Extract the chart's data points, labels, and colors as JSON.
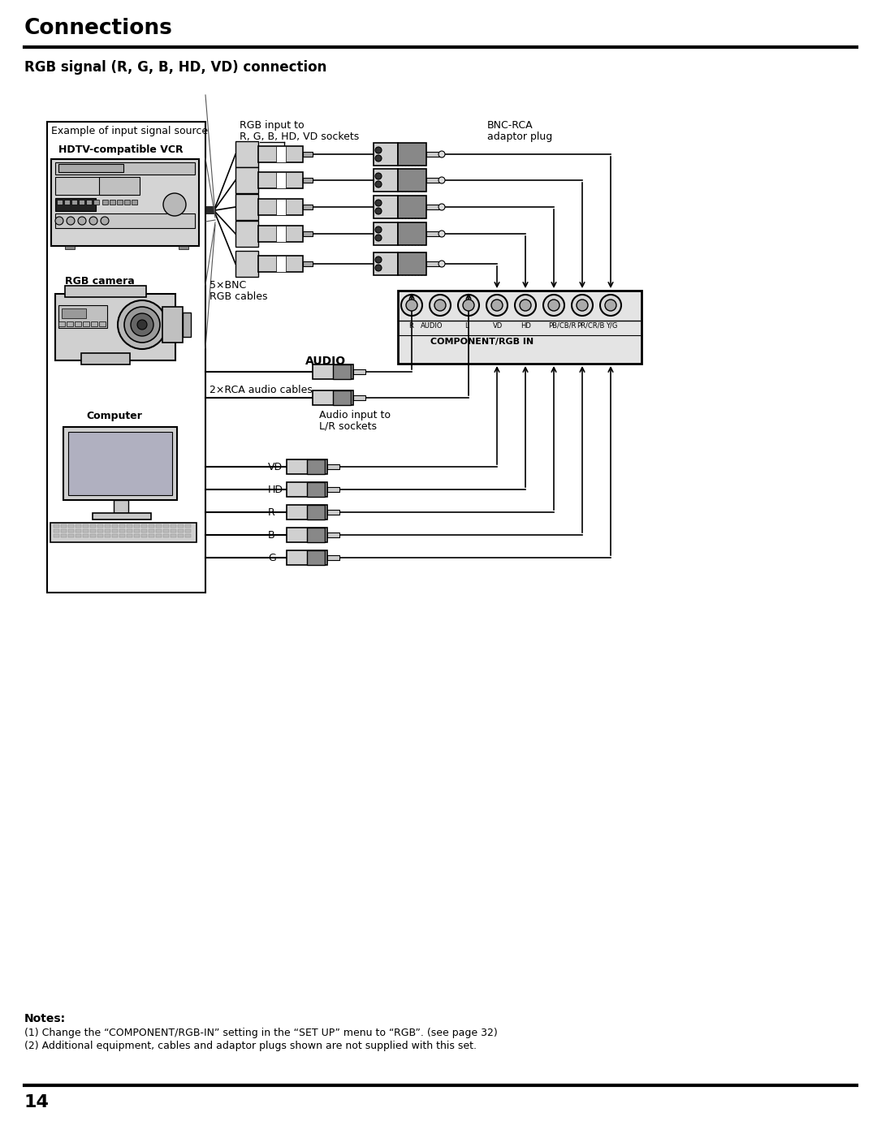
{
  "title": "Connections",
  "subtitle": "RGB signal (R, G, B, HD, VD) connection",
  "page_number": "14",
  "notes_title": "Notes:",
  "note1": "(1) Change the “COMPONENT/RGB-IN” setting in the “SET UP” menu to “RGB”. (see page 32)",
  "note2": "(2) Additional equipment, cables and adaptor plugs shown are not supplied with this set.",
  "bg_color": "#ffffff",
  "label_input_source": "Example of input signal source",
  "label_vcr": "HDTV-compatible VCR",
  "label_camera": "RGB camera",
  "label_computer": "Computer",
  "label_rgb_input_1": "RGB input to",
  "label_rgb_input_2": "R, G, B, HD, VD sockets",
  "label_bnc_rca_1": "BNC-RCA",
  "label_bnc_rca_2": "adaptor plug",
  "label_5bnc_1": "5×BNC",
  "label_5bnc_2": "RGB cables",
  "label_audio": "AUDIO",
  "label_2rca": "2×RCA audio cables",
  "label_audio_input_1": "Audio input to",
  "label_audio_input_2": "L/R sockets",
  "label_vd": "VD",
  "label_hd": "HD",
  "label_r": "R",
  "label_b": "B",
  "label_g": "G",
  "component_label": "COMPONENT/RGB IN",
  "connector_labels": [
    "R",
    "AUDIO",
    "L",
    "VD",
    "HD",
    "PB/CB/R",
    "PR/CR/B",
    "Y/G"
  ],
  "fig_w": 10.8,
  "fig_h": 13.97,
  "dpi": 100
}
